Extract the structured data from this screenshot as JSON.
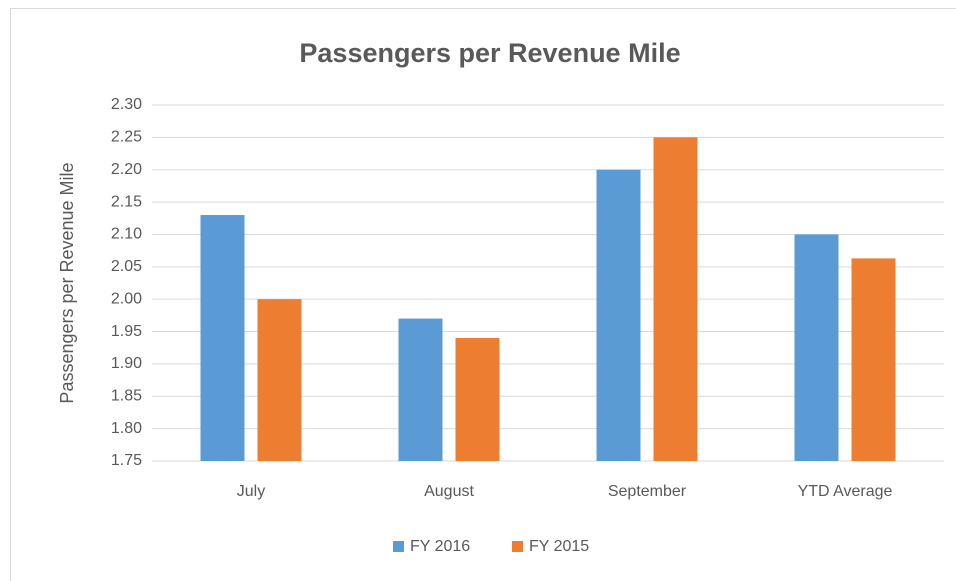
{
  "chart_data": {
    "type": "bar",
    "title": "Passengers per Revenue Mile",
    "y_label": "Passengers per Revenue Mile",
    "categories": [
      "July",
      "August",
      "September",
      "YTD Average"
    ],
    "series": [
      {
        "name": "FY 2016",
        "color": "#5b9bd5",
        "values": [
          2.13,
          1.97,
          2.2,
          2.1
        ]
      },
      {
        "name": "FY 2015",
        "color": "#ed7d31",
        "values": [
          2.0,
          1.94,
          2.25,
          2.063
        ]
      }
    ],
    "ylim": [
      1.75,
      2.3
    ],
    "yticks": [
      1.75,
      {
        "value": 1.8,
        "label": "1.80"
      },
      1.85,
      {
        "value": 1.9,
        "label": "1.90"
      },
      1.95,
      {
        "value": 2.0,
        "label": "2.00"
      },
      2.05,
      {
        "value": 2.1,
        "label": "2.10"
      },
      2.15,
      {
        "value": 2.2,
        "label": "2.20"
      },
      2.25,
      {
        "value": 2.3,
        "label": "2.30"
      }
    ],
    "grid": true,
    "legend": "bottom"
  }
}
